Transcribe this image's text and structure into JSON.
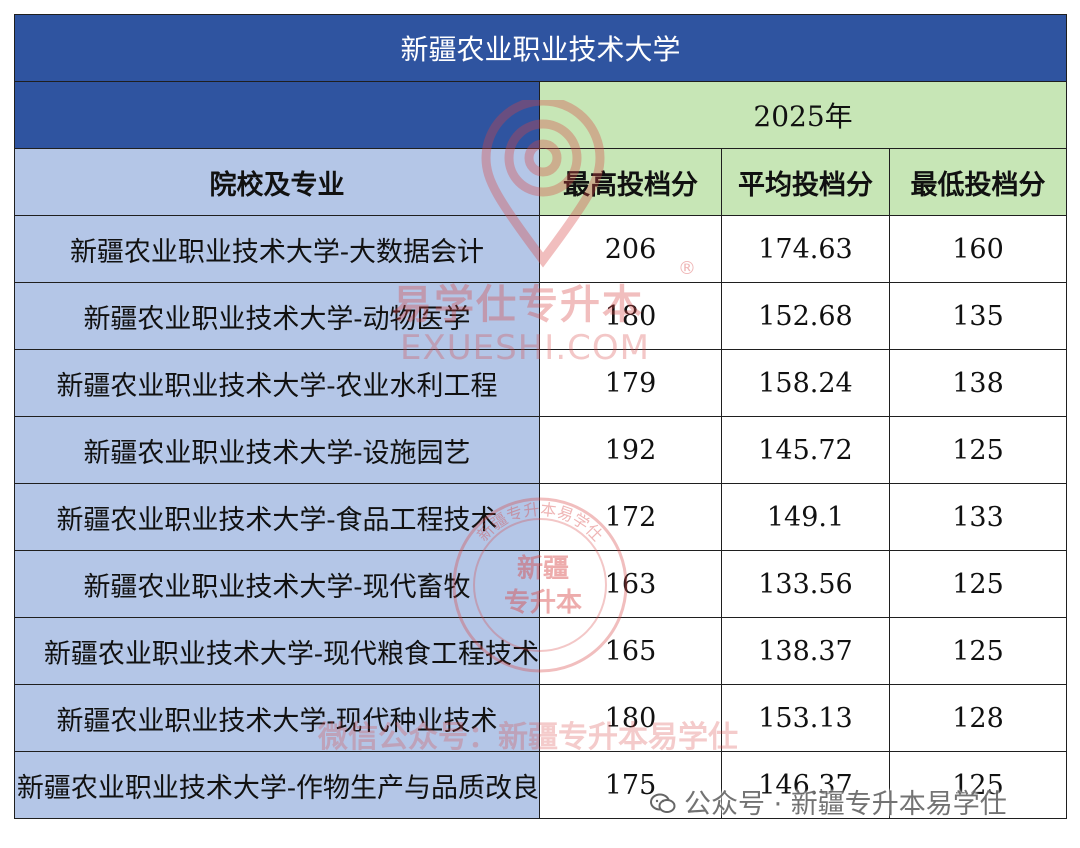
{
  "title": "新疆农业职业技术大学",
  "year_header": "2025年",
  "columns": {
    "school_major": "院校及专业",
    "max_score": "最高投档分",
    "avg_score": "平均投档分",
    "min_score": "最低投档分"
  },
  "rows": [
    {
      "name": "新疆农业职业技术大学-大数据会计",
      "max": "206",
      "avg": "174.63",
      "min": "160"
    },
    {
      "name": "新疆农业职业技术大学-动物医学",
      "max": "180",
      "avg": "152.68",
      "min": "135"
    },
    {
      "name": "新疆农业职业技术大学-农业水利工程",
      "max": "179",
      "avg": "158.24",
      "min": "138"
    },
    {
      "name": "新疆农业职业技术大学-设施园艺",
      "max": "192",
      "avg": "145.72",
      "min": "125"
    },
    {
      "name": "新疆农业职业技术大学-食品工程技术",
      "max": "172",
      "avg": "149.1",
      "min": "133"
    },
    {
      "name": "新疆农业职业技术大学-现代畜牧",
      "max": "163",
      "avg": "133.56",
      "min": "125"
    },
    {
      "name": "新疆农业职业技术大学-现代粮食工程技术",
      "max": "165",
      "avg": "138.37",
      "min": "125"
    },
    {
      "name": "新疆农业职业技术大学-现代种业技术",
      "max": "180",
      "avg": "153.13",
      "min": "128"
    },
    {
      "name": "新疆农业职业技术大学-作物生产与品质改良",
      "max": "175",
      "avg": "146.37",
      "min": "125"
    }
  ],
  "watermarks": {
    "brand": "易学仕专升本",
    "registered": "®",
    "domain": "EXUESHI.COM",
    "seal_text_line1": "新疆",
    "seal_text_line2": "专升本",
    "seal_ring": "新疆专升本易学仕",
    "public_account": "微信公众号：新疆专升本易学仕",
    "footer": "公众号 · 新疆专升本易学仕"
  },
  "colors": {
    "header_blue": "#2f54a0",
    "light_blue": "#b4c6e7",
    "light_green": "#c7e6b6",
    "watermark_red": "#d64646"
  }
}
